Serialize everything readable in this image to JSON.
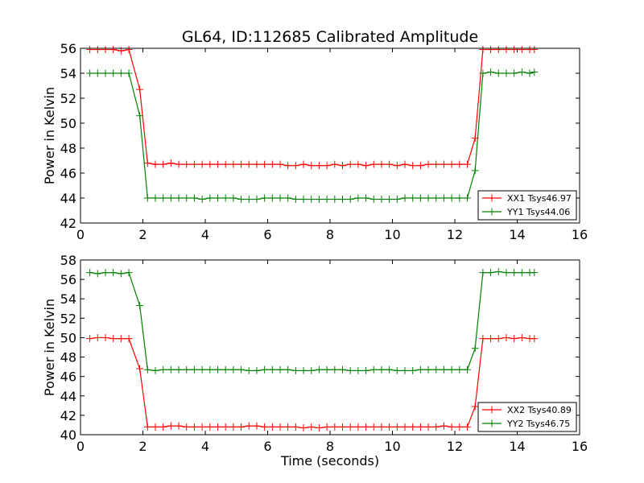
{
  "chart_data": [
    {
      "type": "line",
      "title": "GL64, ID:112685 Calibrated Amplitude",
      "xlabel": "",
      "ylabel": "Power in Kelvin",
      "xlim": [
        0,
        16
      ],
      "ylim": [
        42,
        56
      ],
      "xticks": [
        "0",
        "2",
        "4",
        "6",
        "8",
        "10",
        "12",
        "14",
        "16"
      ],
      "yticks": [
        "42",
        "44",
        "46",
        "48",
        "50",
        "52",
        "54",
        "56"
      ],
      "legend_position": "lower-right",
      "grid": false,
      "x": [
        0.3,
        0.55,
        0.8,
        1.05,
        1.3,
        1.55,
        1.9,
        2.15,
        2.4,
        2.65,
        2.9,
        3.15,
        3.4,
        3.65,
        3.9,
        4.15,
        4.4,
        4.65,
        4.9,
        5.15,
        5.4,
        5.65,
        5.9,
        6.15,
        6.4,
        6.65,
        6.9,
        7.15,
        7.4,
        7.65,
        7.9,
        8.15,
        8.4,
        8.65,
        8.9,
        9.15,
        9.4,
        9.65,
        9.9,
        10.15,
        10.4,
        10.65,
        10.9,
        11.15,
        11.4,
        11.65,
        11.9,
        12.15,
        12.4,
        12.65,
        12.9,
        13.15,
        13.4,
        13.65,
        13.9,
        14.15,
        14.4,
        14.55
      ],
      "series": [
        {
          "name": "XX1 Tsys46.97",
          "color": "#ff0000",
          "values": [
            55.9,
            55.9,
            55.9,
            55.9,
            55.8,
            55.9,
            52.7,
            46.8,
            46.7,
            46.7,
            46.8,
            46.7,
            46.7,
            46.7,
            46.7,
            46.7,
            46.7,
            46.7,
            46.7,
            46.7,
            46.7,
            46.7,
            46.7,
            46.7,
            46.7,
            46.6,
            46.6,
            46.7,
            46.6,
            46.6,
            46.6,
            46.7,
            46.6,
            46.7,
            46.7,
            46.6,
            46.7,
            46.7,
            46.7,
            46.6,
            46.7,
            46.6,
            46.6,
            46.7,
            46.7,
            46.7,
            46.7,
            46.7,
            46.7,
            48.8,
            55.9,
            55.9,
            55.9,
            55.9,
            55.9,
            55.9,
            55.9,
            55.9
          ]
        },
        {
          "name": "YY1 Tsys44.06",
          "color": "#008000",
          "values": [
            54.0,
            54.0,
            54.0,
            54.0,
            54.0,
            54.0,
            50.6,
            44.0,
            44.0,
            44.0,
            44.0,
            44.0,
            44.0,
            44.0,
            43.9,
            44.0,
            44.0,
            44.0,
            44.0,
            43.9,
            43.9,
            43.9,
            44.0,
            44.0,
            44.0,
            44.0,
            43.9,
            43.9,
            43.9,
            43.9,
            43.9,
            43.9,
            43.9,
            43.9,
            44.0,
            44.0,
            43.9,
            43.9,
            43.9,
            43.9,
            44.0,
            44.0,
            44.0,
            44.0,
            44.0,
            44.0,
            44.0,
            44.0,
            44.0,
            46.2,
            54.0,
            54.1,
            54.0,
            54.0,
            54.0,
            54.1,
            54.0,
            54.1
          ]
        }
      ]
    },
    {
      "type": "line",
      "title": "",
      "xlabel": "Time (seconds)",
      "ylabel": "Power in Kelvin",
      "xlim": [
        0,
        16
      ],
      "ylim": [
        40,
        58
      ],
      "xticks": [
        "0",
        "2",
        "4",
        "6",
        "8",
        "10",
        "12",
        "14",
        "16"
      ],
      "yticks": [
        "40",
        "42",
        "44",
        "46",
        "48",
        "50",
        "52",
        "54",
        "56",
        "58"
      ],
      "legend_position": "lower-right",
      "grid": false,
      "x": [
        0.3,
        0.55,
        0.8,
        1.05,
        1.3,
        1.55,
        1.9,
        2.15,
        2.4,
        2.65,
        2.9,
        3.15,
        3.4,
        3.65,
        3.9,
        4.15,
        4.4,
        4.65,
        4.9,
        5.15,
        5.4,
        5.65,
        5.9,
        6.15,
        6.4,
        6.65,
        6.9,
        7.15,
        7.4,
        7.65,
        7.9,
        8.15,
        8.4,
        8.65,
        8.9,
        9.15,
        9.4,
        9.65,
        9.9,
        10.15,
        10.4,
        10.65,
        10.9,
        11.15,
        11.4,
        11.65,
        11.9,
        12.15,
        12.4,
        12.65,
        12.9,
        13.15,
        13.4,
        13.65,
        13.9,
        14.15,
        14.4,
        14.55
      ],
      "series": [
        {
          "name": "XX2 Tsys40.89",
          "color": "#ff0000",
          "values": [
            49.9,
            50.0,
            50.0,
            49.9,
            49.9,
            49.9,
            46.8,
            40.8,
            40.8,
            40.8,
            40.9,
            40.9,
            40.8,
            40.8,
            40.8,
            40.8,
            40.8,
            40.8,
            40.8,
            40.8,
            40.9,
            40.9,
            40.8,
            40.8,
            40.8,
            40.8,
            40.8,
            40.7,
            40.8,
            40.7,
            40.8,
            40.8,
            40.8,
            40.8,
            40.8,
            40.8,
            40.8,
            40.8,
            40.8,
            40.8,
            40.8,
            40.8,
            40.8,
            40.8,
            40.8,
            40.9,
            40.8,
            40.8,
            40.8,
            42.9,
            49.9,
            49.9,
            49.9,
            50.0,
            49.9,
            50.0,
            49.9,
            49.9
          ]
        },
        {
          "name": "YY2 Tsys46.75",
          "color": "#008000",
          "values": [
            56.7,
            56.6,
            56.7,
            56.7,
            56.6,
            56.7,
            53.3,
            46.7,
            46.6,
            46.7,
            46.7,
            46.7,
            46.7,
            46.7,
            46.7,
            46.7,
            46.7,
            46.7,
            46.7,
            46.7,
            46.6,
            46.6,
            46.7,
            46.7,
            46.7,
            46.7,
            46.6,
            46.6,
            46.6,
            46.7,
            46.7,
            46.7,
            46.7,
            46.6,
            46.6,
            46.6,
            46.7,
            46.7,
            46.7,
            46.6,
            46.6,
            46.6,
            46.7,
            46.7,
            46.7,
            46.7,
            46.7,
            46.7,
            46.7,
            48.9,
            56.7,
            56.7,
            56.8,
            56.7,
            56.7,
            56.7,
            56.7,
            56.7
          ]
        }
      ]
    }
  ]
}
